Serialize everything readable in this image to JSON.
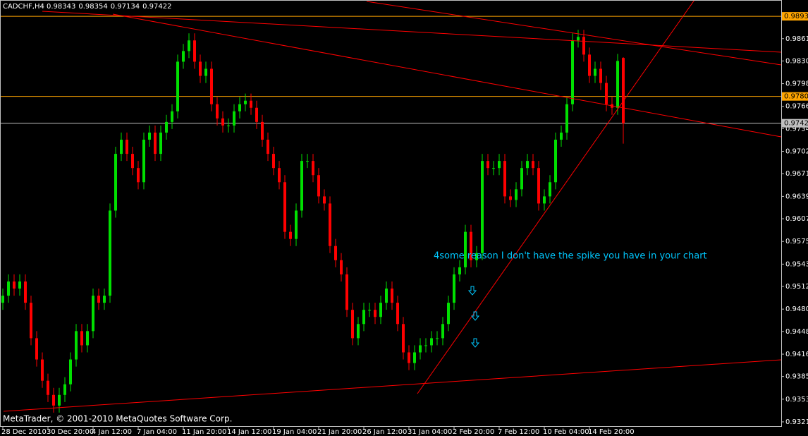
{
  "chart_data": {
    "type": "candlestick",
    "title": "CADCHF,H4",
    "annotation": "4some reason I don't have the spike you have in your chart",
    "footer": "MetaTrader, © 2001-2010 MetaQuotes Software Corp.",
    "up_color": "#00e000",
    "down_color": "#ff0000",
    "categories": [
      "28 Dec 2010",
      null,
      null,
      null,
      null,
      null,
      null,
      null,
      "30 Dec 20:00",
      null,
      null,
      null,
      null,
      null,
      null,
      null,
      "4 Jan 12:00",
      null,
      null,
      null,
      null,
      null,
      null,
      null,
      "7 Jan 04:00",
      null,
      null,
      null,
      null,
      null,
      null,
      null,
      "11 Jan 20:00",
      null,
      null,
      null,
      null,
      null,
      null,
      null,
      "14 Jan 12:00",
      null,
      null,
      null,
      null,
      null,
      null,
      null,
      "19 Jan 04:00",
      null,
      null,
      null,
      null,
      null,
      null,
      null,
      "21 Jan 20:00",
      null,
      null,
      null,
      null,
      null,
      null,
      null,
      "26 Jan 12:00",
      null,
      null,
      null,
      null,
      null,
      null,
      null,
      "31 Jan 04:00",
      null,
      null,
      null,
      null,
      null,
      null,
      null,
      "2 Feb 20:00",
      null,
      null,
      null,
      null,
      null,
      null,
      null,
      "7 Feb 12:00",
      null,
      null,
      null,
      null,
      null,
      null,
      null,
      "10 Feb 04:00",
      null,
      null,
      null,
      null,
      null,
      null,
      null,
      "14 Feb 20:00",
      null,
      null,
      null,
      null,
      null,
      null
    ],
    "open": [
      0.9489,
      0.9499,
      0.9519,
      0.9509,
      0.9519,
      0.9489,
      0.9439,
      0.9409,
      0.9379,
      0.9359,
      0.9344,
      0.9359,
      0.9374,
      0.9409,
      0.9449,
      0.9429,
      0.9449,
      0.9499,
      0.9489,
      0.9499,
      0.9619,
      0.9699,
      0.9719,
      0.9699,
      0.9679,
      0.9659,
      0.9719,
      0.9729,
      0.9699,
      0.9729,
      0.9744,
      0.9759,
      0.9829,
      0.9844,
      0.9859,
      0.9829,
      0.9809,
      0.9819,
      0.9769,
      0.9749,
      0.9739,
      0.9739,
      0.9759,
      0.9769,
      0.9774,
      0.9764,
      0.9744,
      0.9719,
      0.9699,
      0.9679,
      0.9659,
      0.9589,
      0.9579,
      0.9619,
      0.9689,
      0.9689,
      0.9669,
      0.9639,
      0.9629,
      0.9569,
      0.9549,
      0.9529,
      0.9479,
      0.9439,
      0.9459,
      0.9479,
      0.9479,
      0.9469,
      0.9489,
      0.9509,
      0.9489,
      0.9459,
      0.9419,
      0.9404,
      0.9419,
      0.9429,
      0.9429,
      0.9439,
      0.9439,
      0.9459,
      0.9489,
      0.9529,
      0.9539,
      0.9589,
      0.9549,
      0.9559,
      0.9689,
      0.9679,
      0.9679,
      0.9689,
      0.9639,
      0.9634,
      0.9649,
      0.9679,
      0.9689,
      0.9679,
      0.9629,
      0.9639,
      0.9659,
      0.9719,
      0.9729,
      0.9769,
      0.9859,
      0.9864,
      0.9839,
      0.9809,
      0.9819,
      0.9799,
      0.9769,
      0.9764,
      0.98343
    ],
    "high": [
      0.9509,
      0.9529,
      0.9529,
      0.9529,
      0.9529,
      0.9499,
      0.9449,
      0.9419,
      0.9389,
      0.9369,
      0.9369,
      0.9384,
      0.9419,
      0.9459,
      0.9459,
      0.9459,
      0.9509,
      0.9509,
      0.9509,
      0.9629,
      0.9709,
      0.9729,
      0.9729,
      0.9709,
      0.9689,
      0.9729,
      0.9739,
      0.9739,
      0.9739,
      0.9754,
      0.9769,
      0.9839,
      0.9854,
      0.9869,
      0.9869,
      0.9839,
      0.9829,
      0.9829,
      0.9779,
      0.9759,
      0.9749,
      0.9769,
      0.9779,
      0.9784,
      0.9784,
      0.9774,
      0.9754,
      0.9729,
      0.9709,
      0.9689,
      0.9669,
      0.9599,
      0.9629,
      0.9699,
      0.9699,
      0.9699,
      0.9679,
      0.9649,
      0.9639,
      0.9579,
      0.9559,
      0.9539,
      0.9489,
      0.9469,
      0.9489,
      0.9489,
      0.9489,
      0.9499,
      0.9519,
      0.9519,
      0.9499,
      0.9469,
      0.9429,
      0.9429,
      0.9439,
      0.9439,
      0.9449,
      0.9449,
      0.9469,
      0.9499,
      0.9539,
      0.9549,
      0.9599,
      0.9599,
      0.9569,
      0.9699,
      0.9699,
      0.9689,
      0.9699,
      0.9699,
      0.9649,
      0.9659,
      0.9689,
      0.9699,
      0.9699,
      0.9689,
      0.9649,
      0.9669,
      0.9729,
      0.9739,
      0.9779,
      0.9869,
      0.9874,
      0.9874,
      0.9849,
      0.9829,
      0.9829,
      0.9809,
      0.9779,
      0.984,
      0.98354
    ],
    "low": [
      0.9479,
      0.9489,
      0.9499,
      0.9499,
      0.9479,
      0.9429,
      0.9399,
      0.9369,
      0.9349,
      0.9334,
      0.9334,
      0.9349,
      0.9364,
      0.9399,
      0.9419,
      0.9419,
      0.9439,
      0.9479,
      0.9479,
      0.9489,
      0.9609,
      0.9689,
      0.9689,
      0.9669,
      0.9649,
      0.9649,
      0.9709,
      0.9689,
      0.9689,
      0.9719,
      0.9734,
      0.9749,
      0.9819,
      0.9834,
      0.9819,
      0.9799,
      0.9799,
      0.9759,
      0.9739,
      0.9729,
      0.9729,
      0.9729,
      0.9749,
      0.9759,
      0.9754,
      0.9734,
      0.9709,
      0.9689,
      0.9669,
      0.9649,
      0.9579,
      0.9569,
      0.9569,
      0.9609,
      0.9679,
      0.9659,
      0.9629,
      0.9619,
      0.9559,
      0.9539,
      0.9519,
      0.9469,
      0.9429,
      0.9429,
      0.9449,
      0.9469,
      0.9459,
      0.9459,
      0.9479,
      0.9479,
      0.9449,
      0.9409,
      0.9394,
      0.9394,
      0.9409,
      0.9419,
      0.9419,
      0.9429,
      0.9429,
      0.9449,
      0.9479,
      0.9519,
      0.9529,
      0.9539,
      0.9539,
      0.9549,
      0.9669,
      0.9669,
      0.9669,
      0.9629,
      0.9624,
      0.9624,
      0.9639,
      0.9669,
      0.9669,
      0.9619,
      0.9619,
      0.9629,
      0.9649,
      0.9709,
      0.9719,
      0.9759,
      0.9849,
      0.9829,
      0.9799,
      0.9799,
      0.9789,
      0.9759,
      0.9754,
      0.9754,
      0.97134
    ],
    "close": [
      0.9499,
      0.9519,
      0.9509,
      0.9519,
      0.9489,
      0.9439,
      0.9409,
      0.9379,
      0.9359,
      0.9344,
      0.9359,
      0.9374,
      0.9409,
      0.9449,
      0.9429,
      0.9449,
      0.9499,
      0.9489,
      0.9499,
      0.9619,
      0.9699,
      0.9719,
      0.9699,
      0.9679,
      0.9659,
      0.9719,
      0.9729,
      0.9699,
      0.9729,
      0.9744,
      0.9759,
      0.9829,
      0.9844,
      0.9859,
      0.9829,
      0.9809,
      0.9819,
      0.9769,
      0.9749,
      0.9739,
      0.9739,
      0.9759,
      0.9769,
      0.9774,
      0.9764,
      0.9744,
      0.9719,
      0.9699,
      0.9679,
      0.9659,
      0.9589,
      0.9579,
      0.9619,
      0.9689,
      0.9689,
      0.9669,
      0.9639,
      0.9629,
      0.9569,
      0.9549,
      0.9529,
      0.9479,
      0.9439,
      0.9459,
      0.9479,
      0.9479,
      0.9469,
      0.9489,
      0.9509,
      0.9489,
      0.9459,
      0.9419,
      0.9404,
      0.9419,
      0.9429,
      0.9429,
      0.9439,
      0.9439,
      0.9459,
      0.9489,
      0.9529,
      0.9539,
      0.9589,
      0.9549,
      0.9559,
      0.9689,
      0.9679,
      0.9679,
      0.9689,
      0.9639,
      0.9634,
      0.9649,
      0.9679,
      0.9689,
      0.9679,
      0.9629,
      0.9639,
      0.9659,
      0.9719,
      0.9729,
      0.9769,
      0.9859,
      0.9864,
      0.9839,
      0.9809,
      0.9819,
      0.9799,
      0.9769,
      0.9764,
      0.983,
      0.97422
    ],
    "ylim": [
      0.9314,
      0.9916
    ],
    "yticks": [
      0.98615,
      {
        "value": 0.983,
        "label": "0.98300"
      },
      {
        "value": 0.9798,
        "label": "0.97980"
      },
      {
        "value": 0.9766,
        "label": "0.97660"
      },
      0.97345,
      0.97025,
      {
        "value": 0.9671,
        "label": "0.96710"
      },
      {
        "value": 0.9639,
        "label": "0.96390"
      },
      0.96075,
      0.95755,
      0.95435,
      {
        "value": 0.9512,
        "label": "0.95120"
      },
      {
        "value": 0.948,
        "label": "0.94800"
      },
      0.94485,
      0.94165,
      {
        "value": 0.9385,
        "label": "0.93850"
      },
      {
        "value": 0.9353,
        "label": "0.93530"
      },
      {
        "value": 0.9321,
        "label": "0.93210"
      }
    ],
    "hlines": [
      {
        "value": 0.9893,
        "label": "0.9893",
        "color": "#ffa500"
      },
      {
        "value": 0.978,
        "label": "0.9780",
        "color": "#ffa500"
      },
      {
        "value": 0.97422,
        "label": "0.97422",
        "color": "#c0c0c0"
      }
    ]
  }
}
